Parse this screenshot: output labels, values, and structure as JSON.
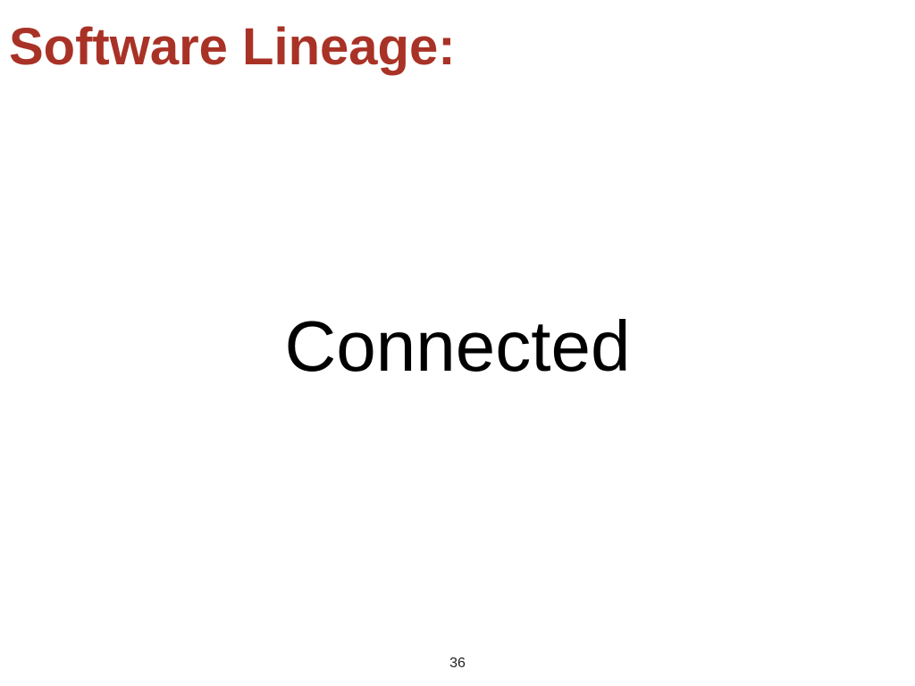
{
  "slide": {
    "title": "Software Lineage:",
    "body_text": "Connected",
    "page_number": "36"
  },
  "colors": {
    "title": "#a93226",
    "body": "#000000",
    "background": "#ffffff"
  }
}
